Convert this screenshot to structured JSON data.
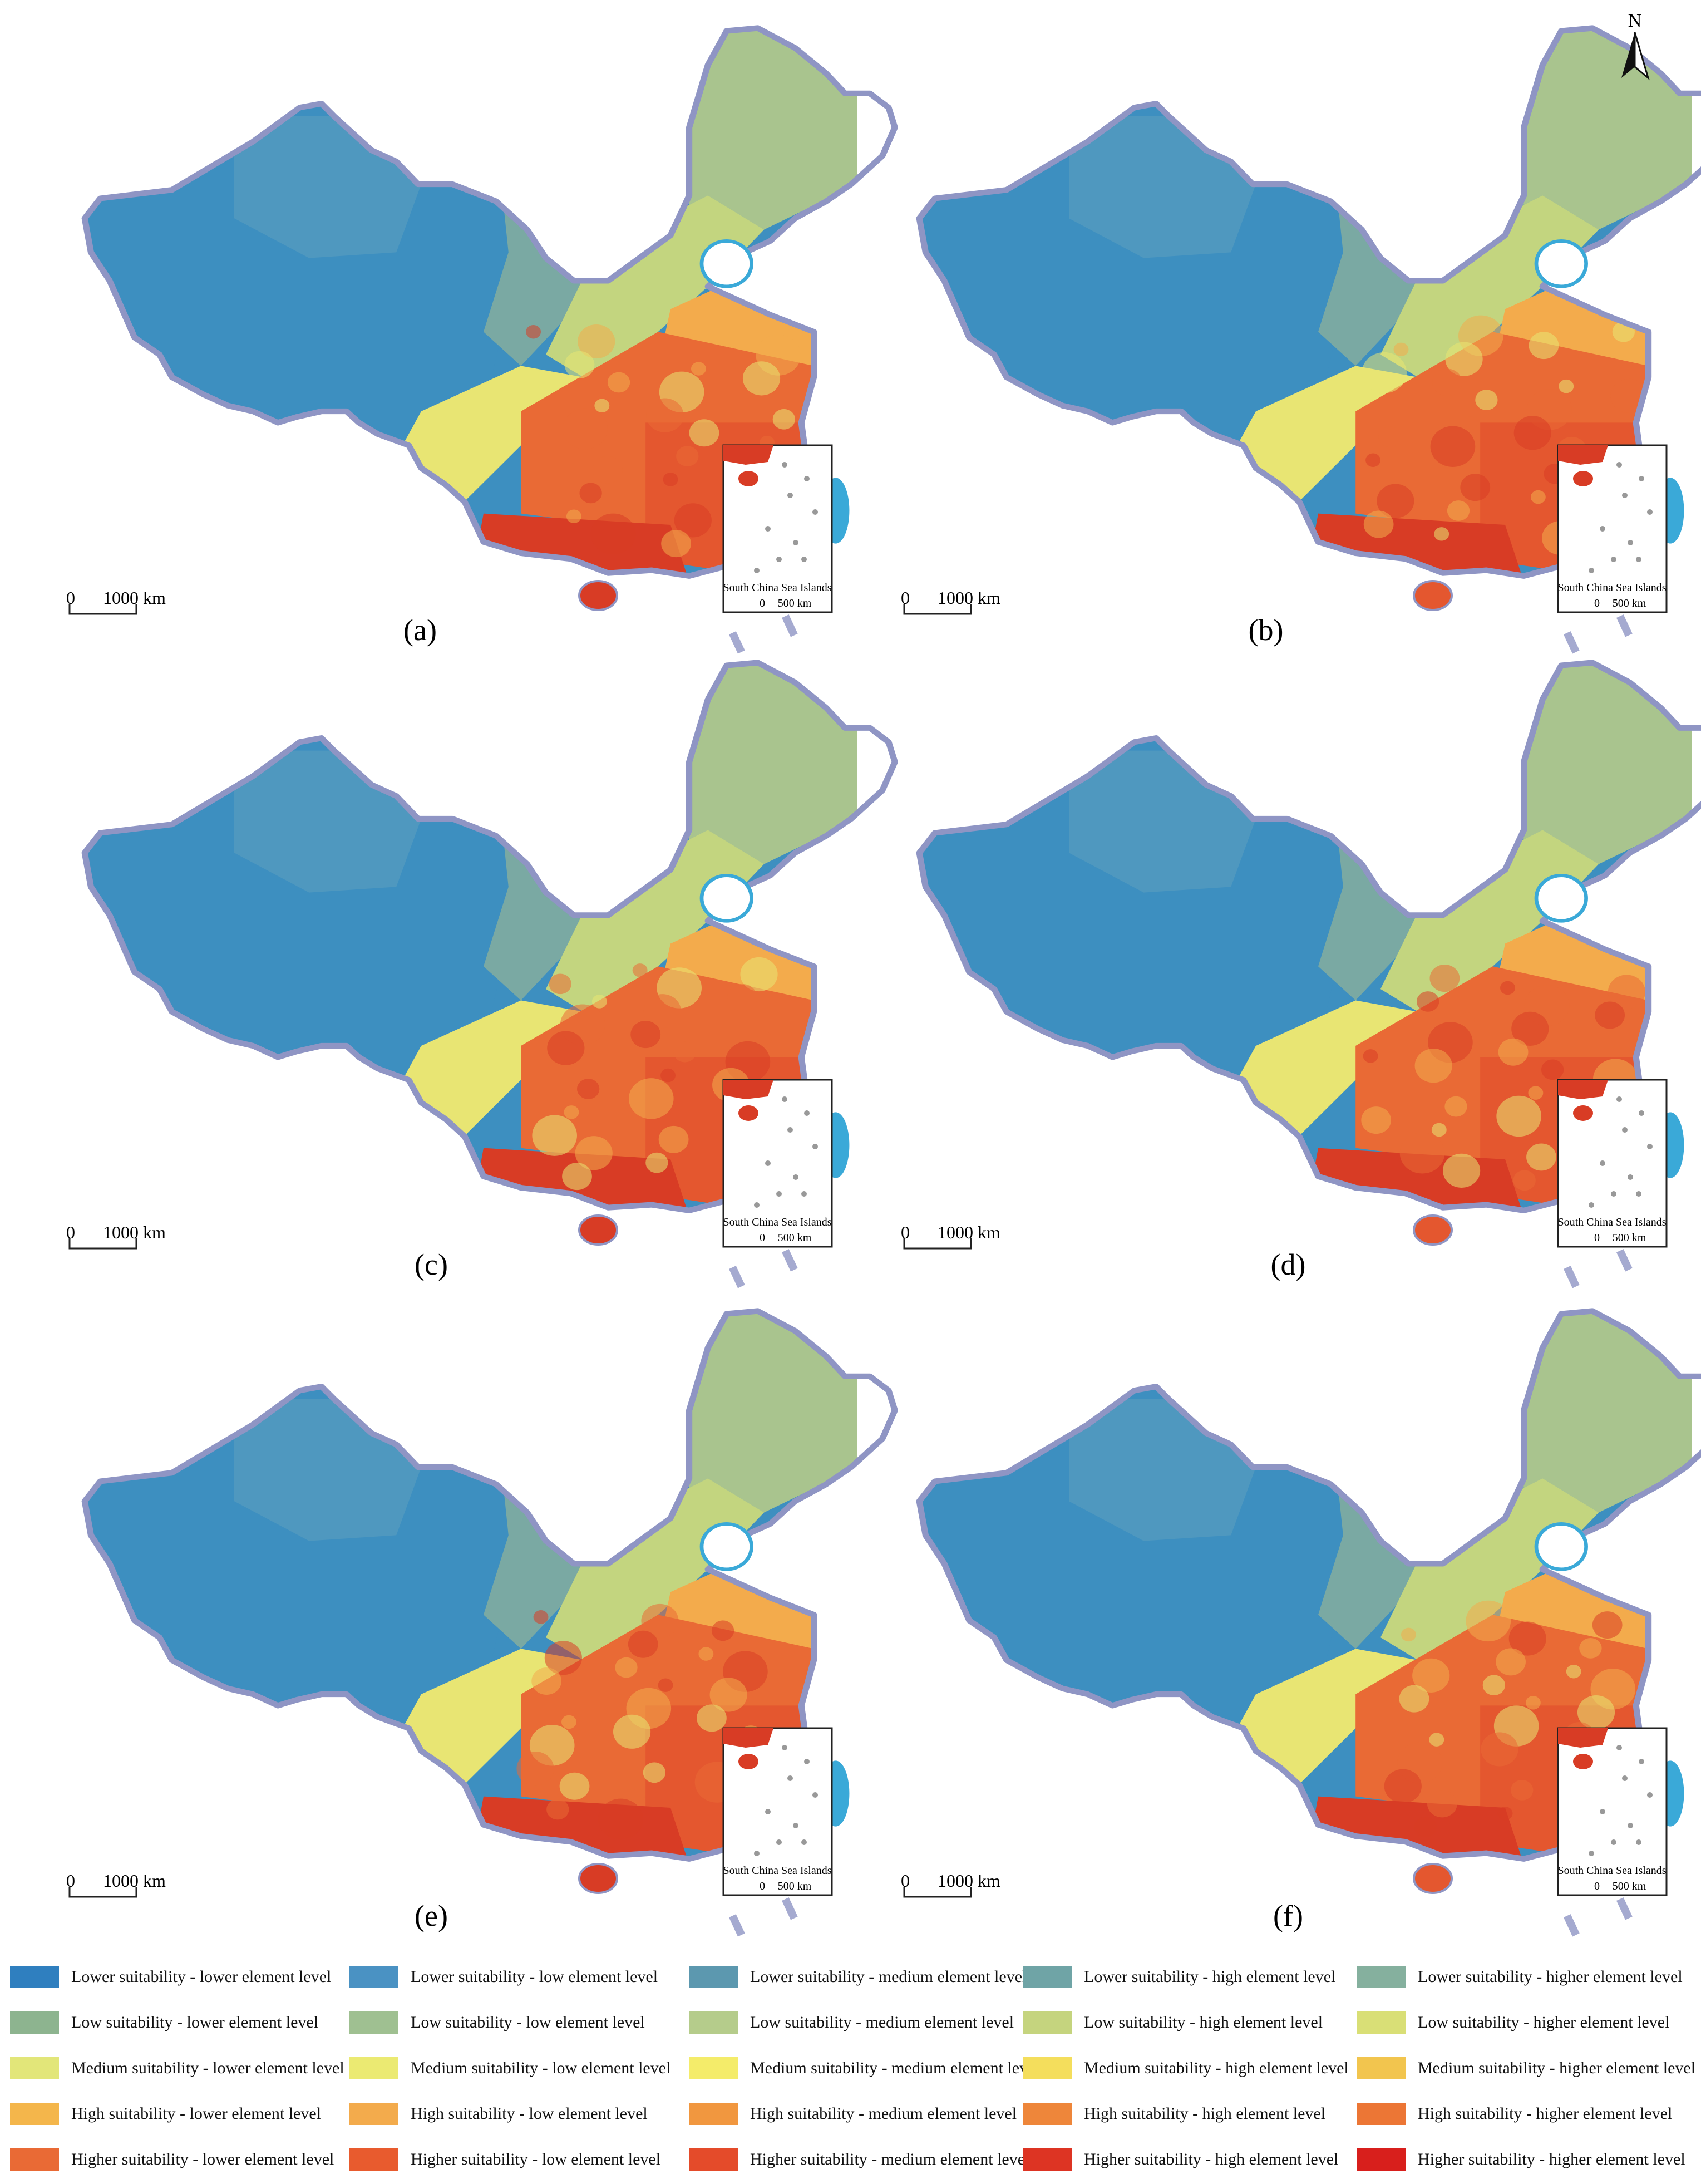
{
  "north_arrow": {
    "label": "N"
  },
  "panels": [
    {
      "id": "a",
      "label": "(a)",
      "scale_zero": "0",
      "scale_text": "1000 km",
      "inset": {
        "title": "South China Sea Islands",
        "zero": "0",
        "distance": "500 km"
      }
    },
    {
      "id": "b",
      "label": "(b)",
      "scale_zero": "0",
      "scale_text": "1000 km",
      "inset": {
        "title": "South China Sea Islands",
        "zero": "0",
        "distance": "500 km"
      }
    },
    {
      "id": "c",
      "label": "(c)",
      "scale_zero": "0",
      "scale_text": "1000 km",
      "inset": {
        "title": "South China Sea Islands",
        "zero": "0",
        "distance": "500 km"
      }
    },
    {
      "id": "d",
      "label": "(d)",
      "scale_zero": "0",
      "scale_text": "1000 km",
      "inset": {
        "title": "South China Sea Islands",
        "zero": "0",
        "distance": "500 km"
      }
    },
    {
      "id": "e",
      "label": "(e)",
      "scale_zero": "0",
      "scale_text": "1000 km",
      "inset": {
        "title": "South China Sea Islands",
        "zero": "0",
        "distance": "500 km"
      }
    },
    {
      "id": "f",
      "label": "(f)",
      "scale_zero": "0",
      "scale_text": "1000 km",
      "inset": {
        "title": "South China Sea Islands",
        "zero": "0",
        "distance": "500 km"
      }
    }
  ],
  "colors": {
    "water": "#3aa9d8",
    "boundary": "#8f95c4",
    "scheme": {
      "west": "#3d8fc0",
      "northwest": "#4f98bf",
      "north": "#7aa9a3",
      "northeast": "#a9c48e",
      "central_north": "#c3d57f",
      "central": "#e8e573",
      "east_coast": "#f3ab4c",
      "south_central": "#e96a35",
      "southeast": "#e4572f",
      "south": "#d83c25"
    }
  },
  "legend": [
    {
      "label": "Lower suitability - lower element level",
      "color": "#2f7fbf"
    },
    {
      "label": "Lower suitability - low element level",
      "color": "#4a92c3"
    },
    {
      "label": "Lower suitability - medium element level",
      "color": "#5c98af"
    },
    {
      "label": "Lower suitability - high element level",
      "color": "#6fa4a6"
    },
    {
      "label": "Lower suitability - higher element level",
      "color": "#85b09e"
    },
    {
      "label": "Low suitability - lower element level",
      "color": "#8db48f"
    },
    {
      "label": "Low suitability - low element level",
      "color": "#9fc091"
    },
    {
      "label": "Low suitability - medium element level",
      "color": "#b5cc8b"
    },
    {
      "label": "Low suitability - high element level",
      "color": "#c5d47e"
    },
    {
      "label": "Low suitability - higher element level",
      "color": "#d9df76"
    },
    {
      "label": "Medium suitability - lower element level",
      "color": "#e2e679"
    },
    {
      "label": "Medium suitability - low element level",
      "color": "#ebea72"
    },
    {
      "label": "Medium suitability - medium element level",
      "color": "#f4ec6a"
    },
    {
      "label": "Medium suitability - high element level",
      "color": "#f4de5c"
    },
    {
      "label": "Medium suitability - higher element level",
      "color": "#f2c54e"
    },
    {
      "label": "High suitability - lower element level",
      "color": "#f4b64b"
    },
    {
      "label": "High suitability - low element level",
      "color": "#f3ab4c"
    },
    {
      "label": "High suitability - medium element level",
      "color": "#f1973f"
    },
    {
      "label": "High suitability - high element level",
      "color": "#ee863a"
    },
    {
      "label": "High suitability - higher element level",
      "color": "#ec7635"
    },
    {
      "label": "Higher suitability - lower element level",
      "color": "#e96a35"
    },
    {
      "label": "Higher suitability - low element level",
      "color": "#e85b2e"
    },
    {
      "label": "Higher suitability - medium element level",
      "color": "#e44b2a"
    },
    {
      "label": "Higher suitability - high element level",
      "color": "#dd3423"
    },
    {
      "label": "Higher suitability - higher element level",
      "color": "#d81f1c"
    }
  ]
}
